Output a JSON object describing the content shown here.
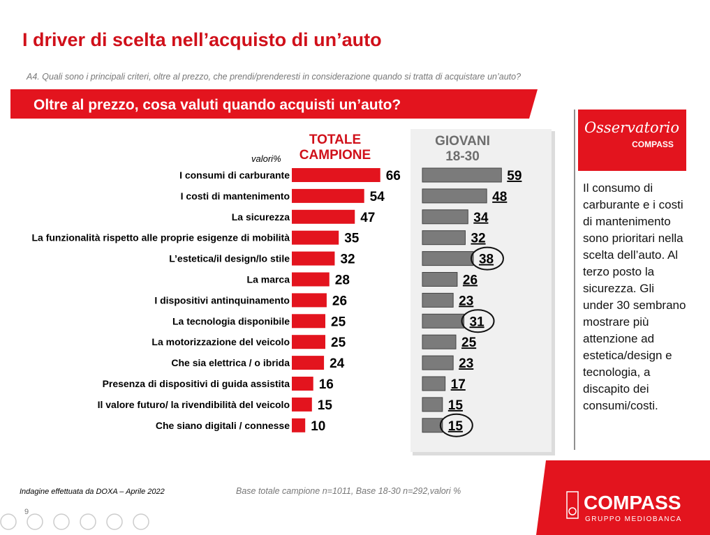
{
  "slide": {
    "title": "I driver di scelta nell’acquisto di un’auto",
    "question": "A4. Quali sono i principali criteri, oltre al prezzo, che prendi/prenderesti in considerazione quando si tratta di acquistare un’auto?",
    "banner": "Oltre al prezzo, cosa valuti quando acquisti un’auto?",
    "logo_top": "Osservatorio",
    "logo_bottom": "COMPASS",
    "side_note": "Il consumo di carburante e i costi di mantenimento sono prioritari nella scelta dell’auto. Al terzo posto la sicurezza. Gli under 30 sembrano mostrare più attenzione ad estetica/design e tecnologia, a discapito dei consumi/costi.",
    "source": "Indagine effettuata da DOXA – Aprile 2022",
    "base": "Base totale campione n=1011, Base 18-30 n=292,valori %",
    "page": "9",
    "brand": "COMPASS",
    "brand_sub": "GRUPPO MEDIOBANCA"
  },
  "chart_data": {
    "type": "bar",
    "unit_label": "valori%",
    "categories": [
      "I consumi di carburante",
      "I costi di mantenimento",
      "La sicurezza",
      "La funzionalità rispetto alle proprie esigenze di mobilità",
      "L’estetica/il design/lo stile",
      "La marca",
      "I dispositivi antinquinamento",
      "La tecnologia disponibile",
      "La motorizzazione del veicolo",
      "Che sia elettrica / o ibrida",
      "Presenza di dispositivi di guida assistita",
      "Il valore futuro/ la rivendibilità del veicolo",
      "Che siano digitali / connesse"
    ],
    "series": [
      {
        "name": "TOTALE CAMPIONE",
        "color": "#e3141e",
        "values": [
          66,
          54,
          47,
          35,
          32,
          28,
          26,
          25,
          25,
          24,
          16,
          15,
          10
        ]
      },
      {
        "name": "GIOVANI 18-30",
        "color": "#7b7b7b",
        "values": [
          59,
          48,
          34,
          32,
          38,
          26,
          23,
          31,
          25,
          23,
          17,
          15,
          15
        ],
        "circled": [
          4,
          7,
          12
        ]
      }
    ]
  }
}
